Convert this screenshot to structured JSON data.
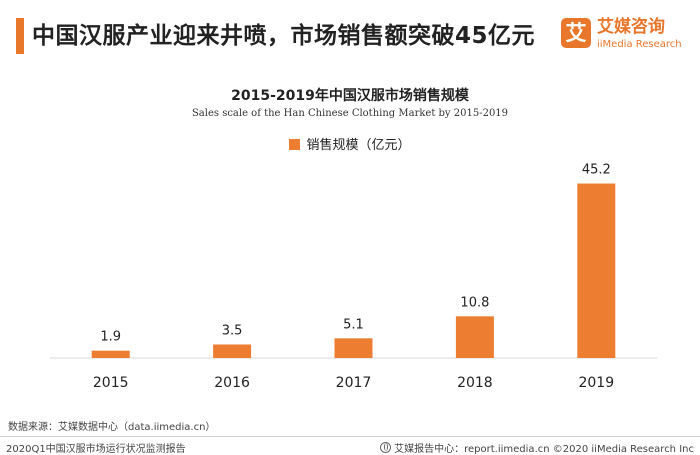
{
  "header": {
    "headline": "中国汉服产业迎来井喷，市场销售额突破45亿元",
    "brand_badge": "艾",
    "brand_name": "艾媒咨询",
    "brand_sub": "iiMedia Research"
  },
  "chart_data": {
    "type": "bar",
    "title": "2015-2019年中国汉服市场销售规模",
    "subtitle": "Sales scale of the Han Chinese Clothing Market by 2015-2019",
    "categories": [
      "2015",
      "2016",
      "2017",
      "2018",
      "2019"
    ],
    "series": [
      {
        "name": "销售规模（亿元）",
        "values": [
          1.9,
          3.5,
          5.1,
          10.8,
          45.2
        ]
      }
    ],
    "value_labels": [
      "1.9",
      "3.5",
      "5.1",
      "10.8",
      "45.2"
    ],
    "ylim": [
      0,
      50
    ],
    "grid": false,
    "legend_position": "top-center",
    "bar_color": "#ed7d31"
  },
  "footer": {
    "source": "数据来源：艾媒数据中心（data.iimedia.cn）",
    "report_name": "2020Q1中国汉服市场运行状况监测报告",
    "right_text": "艾媒报告中心：report.iimedia.cn  ©2020  iiMedia Research  Inc"
  },
  "colors": {
    "accent": "#e8762b",
    "bar": "#ed7d31"
  }
}
